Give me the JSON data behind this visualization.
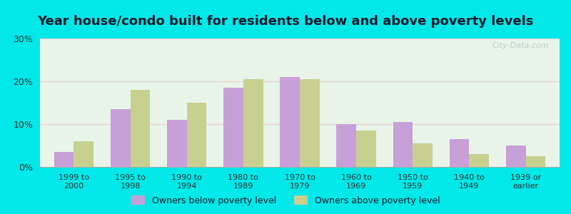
{
  "title": "Year house/condo built for residents below and above poverty levels",
  "categories": [
    "1999 to\n2000",
    "1995 to\n1998",
    "1990 to\n1994",
    "1980 to\n1989",
    "1970 to\n1979",
    "1960 to\n1969",
    "1950 to\n1959",
    "1940 to\n1949",
    "1939 or\nearlier"
  ],
  "below_poverty": [
    3.5,
    13.5,
    11.0,
    18.5,
    21.0,
    10.0,
    10.5,
    6.5,
    5.0
  ],
  "above_poverty": [
    6.0,
    18.0,
    15.0,
    20.5,
    20.5,
    8.5,
    5.5,
    3.0,
    2.5
  ],
  "below_color": "#c8a0d8",
  "above_color": "#c8d090",
  "ylim": [
    0,
    30
  ],
  "yticks": [
    0,
    10,
    20,
    30
  ],
  "outer_background": "#00e8e8",
  "plot_bg_color": "#e8f5e8",
  "title_fontsize": 13,
  "legend_below_label": "Owners below poverty level",
  "legend_above_label": "Owners above poverty level",
  "bar_width": 0.35
}
